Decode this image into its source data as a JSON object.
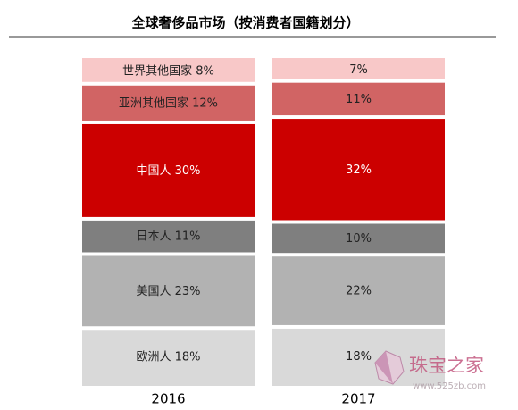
{
  "chart_data": {
    "type": "stacked_bar",
    "title": "全球奢侈品市场（按消费者国籍划分）",
    "categories": [
      "2016",
      "2017"
    ],
    "series": [
      {
        "name": "欧洲人",
        "color": "#d9d9d9",
        "values": [
          18,
          18
        ],
        "value_labels": [
          "18%",
          "18%"
        ]
      },
      {
        "name": "美国人",
        "color": "#b2b2b2",
        "values": [
          23,
          22
        ],
        "value_labels": [
          "23%",
          "22%"
        ]
      },
      {
        "name": "日本人",
        "color": "#7f7f7f",
        "values": [
          11,
          10
        ],
        "value_labels": [
          "11%",
          "10%"
        ]
      },
      {
        "name": "中国人",
        "color": "#cc0000",
        "values": [
          30,
          32
        ],
        "value_labels": [
          "30%",
          "32%"
        ]
      },
      {
        "name": "亚洲其他国家",
        "color": "#d16464",
        "values": [
          12,
          11
        ],
        "value_labels": [
          "12%",
          "11%"
        ]
      },
      {
        "name": "世界其他国家",
        "color": "#f8c8c8",
        "values": [
          8,
          7
        ],
        "value_labels": [
          "8%",
          "7%"
        ]
      }
    ]
  },
  "watermark": {
    "text": "珠宝之家",
    "url": "www.525zb.com"
  }
}
